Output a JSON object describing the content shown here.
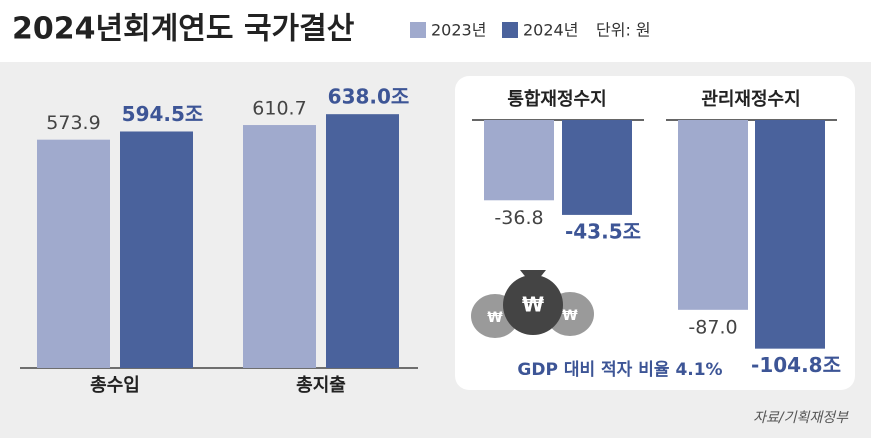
{
  "title": "2024년회계연도 국가결산",
  "unit": "단위: 원",
  "source": "자료/기획재정부",
  "chart_data": [
    {
      "type": "bar",
      "categories": [
        "총수입",
        "총지출"
      ],
      "series": [
        {
          "name": "2023년",
          "color": "#a0aacd",
          "values": [
            573.9,
            610.7
          ],
          "value_labels": [
            "573.9",
            "610.7"
          ]
        },
        {
          "name": "2024년",
          "color": "#4a629c",
          "values": [
            594.5,
            638.0
          ],
          "value_labels": [
            "594.5조",
            "638.0조"
          ]
        }
      ],
      "ylim": [
        0,
        925
      ]
    },
    {
      "type": "bar",
      "categories": [
        "통합재정수지",
        "관리재정수지"
      ],
      "series": [
        {
          "name": "2023년",
          "color": "#a0aacd",
          "values": [
            -36.8,
            -87.0
          ],
          "value_labels": [
            "-36.8",
            "-87.0"
          ]
        },
        {
          "name": "2024년",
          "color": "#4a629c",
          "values": [
            -43.5,
            -104.8
          ],
          "value_labels": [
            "-43.5조",
            "-104.8조"
          ]
        }
      ],
      "ylim": [
        -110,
        0
      ],
      "annotation": "GDP 대비 적자 비율 4.1%"
    }
  ]
}
